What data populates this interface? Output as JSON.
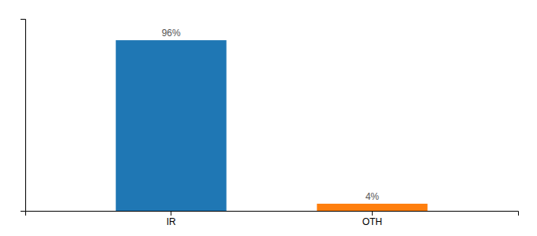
{
  "chart_data": {
    "type": "bar",
    "categories": [
      "IR",
      "OTH"
    ],
    "values": [
      96,
      4
    ],
    "value_labels": [
      "96%",
      "4%"
    ],
    "data_labels": true,
    "ylim": [
      0,
      108
    ],
    "yticks": [],
    "tick_labels": "x",
    "grid": false
  }
}
